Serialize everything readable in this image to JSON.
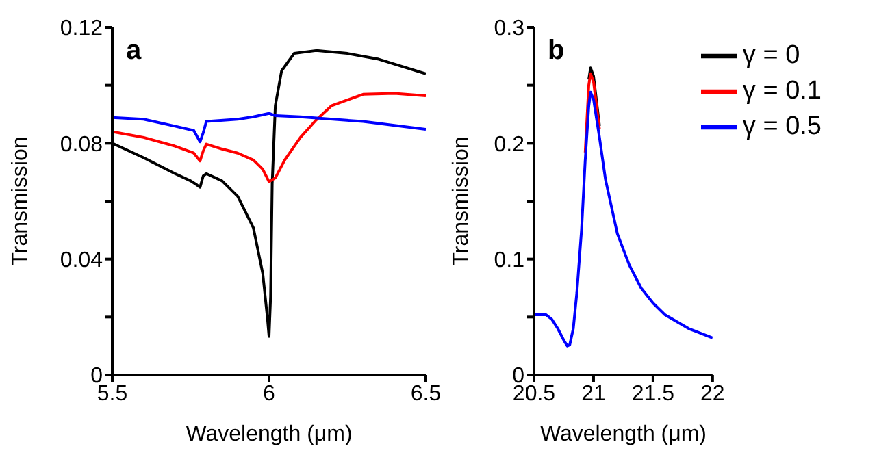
{
  "chart_data": [
    {
      "type": "line",
      "annotations": [
        "a"
      ],
      "xlabel": "Wavelength (μm)",
      "ylabel": "Transmission",
      "xlim": [
        5.5,
        6.5
      ],
      "xticks": [
        5.5,
        6,
        6.5
      ],
      "ylim": [
        0,
        0.12
      ],
      "yticks": [
        0,
        {
          "value": 0.02,
          "label": null
        },
        0.04,
        {
          "value": 0.06,
          "label": null
        },
        0.08,
        {
          "value": 0.1,
          "label": null
        },
        0.12
      ],
      "legend": false,
      "grid": false,
      "marker": "none",
      "line_style": "solid",
      "series": [
        {
          "color": "#000000",
          "x": [
            5.5,
            5.6,
            5.7,
            5.75,
            5.77,
            5.78,
            5.79,
            5.8,
            5.85,
            5.9,
            5.95,
            5.98,
            5.995,
            6.0,
            6.005,
            6.01,
            6.02,
            6.04,
            6.08,
            6.15,
            6.25,
            6.35,
            6.5
          ],
          "values": [
            0.08,
            0.075,
            0.0695,
            0.067,
            0.0656,
            0.0648,
            0.0687,
            0.0695,
            0.067,
            0.0617,
            0.0508,
            0.035,
            0.0195,
            0.0133,
            0.027,
            0.066,
            0.093,
            0.105,
            0.111,
            0.112,
            0.111,
            0.109,
            0.104
          ]
        },
        {
          "color": "#ff0000",
          "x": [
            5.5,
            5.6,
            5.7,
            5.76,
            5.78,
            5.79,
            5.8,
            5.85,
            5.9,
            5.95,
            5.98,
            6.0,
            6.02,
            6.05,
            6.1,
            6.15,
            6.2,
            6.3,
            6.4,
            6.5
          ],
          "values": [
            0.084,
            0.082,
            0.079,
            0.0766,
            0.0739,
            0.0773,
            0.0797,
            0.078,
            0.0766,
            0.0742,
            0.071,
            0.0667,
            0.068,
            0.0742,
            0.082,
            0.088,
            0.093,
            0.0969,
            0.0972,
            0.0964
          ]
        },
        {
          "color": "#0000ff",
          "x": [
            5.5,
            5.6,
            5.7,
            5.76,
            5.78,
            5.79,
            5.8,
            5.9,
            5.95,
            6.0,
            6.02,
            6.1,
            6.3,
            6.5
          ],
          "values": [
            0.0889,
            0.0883,
            0.0859,
            0.0844,
            0.0805,
            0.0836,
            0.0875,
            0.0883,
            0.0891,
            0.0903,
            0.0895,
            0.0891,
            0.0875,
            0.0848
          ]
        }
      ]
    },
    {
      "type": "line",
      "annotations": [
        "b"
      ],
      "xlabel": "Wavelength (μm)",
      "ylabel": "Transmission",
      "xlim": [
        20.5,
        22
      ],
      "xticks": [
        20.5,
        21,
        21.5,
        22
      ],
      "ylim": [
        0,
        0.3
      ],
      "yticks": [
        0,
        {
          "value": 0.05,
          "label": null
        },
        0.1,
        {
          "value": 0.15,
          "label": null
        },
        0.2,
        {
          "value": 0.25,
          "label": null
        },
        0.3
      ],
      "legend": "top right",
      "grid": false,
      "marker": "none",
      "line_style": "solid",
      "series": [
        {
          "name": "γ = 0",
          "color": "#000000",
          "x": [
            20.96,
            20.975,
            21.0,
            21.05
          ],
          "values": [
            0.255,
            0.265,
            0.258,
            0.215
          ]
        },
        {
          "name": "γ = 0.1",
          "color": "#ff0000",
          "x": [
            20.93,
            20.96,
            20.975,
            21.0,
            21.05
          ],
          "values": [
            0.192,
            0.25,
            0.26,
            0.253,
            0.212
          ]
        },
        {
          "name": "γ = 0.5",
          "color": "#0000ff",
          "x": [
            20.5,
            20.6,
            20.65,
            20.7,
            20.75,
            20.78,
            20.8,
            20.83,
            20.86,
            20.9,
            20.93,
            20.96,
            20.975,
            21.0,
            21.05,
            21.1,
            21.2,
            21.3,
            21.4,
            21.5,
            21.6,
            21.8,
            22
          ],
          "values": [
            0.052,
            0.052,
            0.048,
            0.04,
            0.03,
            0.025,
            0.026,
            0.04,
            0.071,
            0.126,
            0.185,
            0.232,
            0.244,
            0.238,
            0.205,
            0.169,
            0.122,
            0.095,
            0.075,
            0.062,
            0.052,
            0.04,
            0.032
          ]
        }
      ]
    }
  ]
}
